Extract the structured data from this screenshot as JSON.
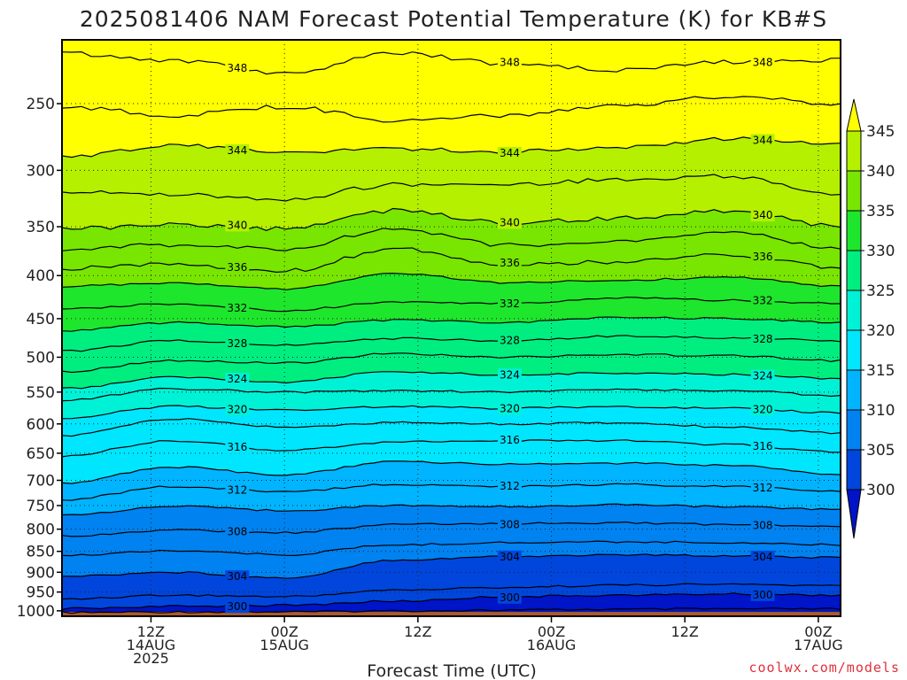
{
  "chart_data": {
    "type": "heatmap",
    "title": "2025081406 NAM Forecast Potential Temperature (K) for KB#S",
    "xlabel": "Forecast Time (UTC)",
    "ylabel": "",
    "units": "K",
    "y_axis": {
      "scale": "log-pressure",
      "direction": "decreasing-upward",
      "range": [
        1015,
        210
      ],
      "ticks": [
        250,
        300,
        350,
        400,
        450,
        500,
        550,
        600,
        650,
        700,
        750,
        800,
        850,
        900,
        950,
        1000
      ]
    },
    "x_axis": {
      "range_hours": [
        -2,
        68
      ],
      "ticks": [
        {
          "hour": 6,
          "lines": [
            "12Z",
            "14AUG",
            "2025"
          ]
        },
        {
          "hour": 18,
          "lines": [
            "00Z",
            "15AUG"
          ]
        },
        {
          "hour": 30,
          "lines": [
            "12Z"
          ]
        },
        {
          "hour": 42,
          "lines": [
            "00Z",
            "16AUG"
          ]
        },
        {
          "hour": 54,
          "lines": [
            "12Z"
          ]
        },
        {
          "hour": 66,
          "lines": [
            "00Z",
            "17AUG"
          ]
        },
        {
          "hour": 78,
          "lines": [
            "12Z"
          ]
        }
      ]
    },
    "grid": true,
    "colorbar": {
      "labels": [
        "345",
        "340",
        "335",
        "330",
        "325",
        "320",
        "315",
        "310",
        "305",
        "300"
      ],
      "bins": [
        {
          "min": 345,
          "max": 350,
          "color": "#ffff00"
        },
        {
          "min": 340,
          "max": 345,
          "color": "#b4f000"
        },
        {
          "min": 335,
          "max": 340,
          "color": "#78e600"
        },
        {
          "min": 330,
          "max": 335,
          "color": "#1ee62c"
        },
        {
          "min": 325,
          "max": 330,
          "color": "#00ee80"
        },
        {
          "min": 320,
          "max": 325,
          "color": "#00f2d6"
        },
        {
          "min": 315,
          "max": 320,
          "color": "#00e6ff"
        },
        {
          "min": 310,
          "max": 315,
          "color": "#00b4ff"
        },
        {
          "min": 305,
          "max": 310,
          "color": "#0082f0"
        },
        {
          "min": 300,
          "max": 305,
          "color": "#0046dc"
        },
        {
          "min": 290,
          "max": 300,
          "color": "#0014c8"
        }
      ]
    },
    "ground_color": "#a85a32",
    "contour_interval": 2,
    "contours": [
      {
        "level": 298,
        "label": "",
        "p": [
          1005,
          1003,
          1003,
          1000,
          998,
          996,
          995,
          995
        ]
      },
      {
        "level": 300,
        "label": "300",
        "p": [
          994,
          988,
          985,
          974,
          962,
          958,
          955,
          958
        ]
      },
      {
        "level": 302,
        "label": "",
        "p": [
          968,
          958,
          962,
          945,
          938,
          932,
          930,
          934
        ]
      },
      {
        "level": 304,
        "label": "304",
        "p": [
          910,
          900,
          914,
          870,
          862,
          858,
          860,
          865
        ]
      },
      {
        "level": 306,
        "label": "",
        "p": [
          860,
          848,
          858,
          835,
          830,
          828,
          830,
          835
        ]
      },
      {
        "level": 308,
        "label": "308",
        "p": [
          815,
          802,
          808,
          790,
          788,
          786,
          790,
          795
        ]
      },
      {
        "level": 310,
        "label": "",
        "p": [
          770,
          752,
          760,
          750,
          752,
          748,
          752,
          758
        ]
      },
      {
        "level": 312,
        "label": "312",
        "p": [
          738,
          712,
          722,
          708,
          712,
          708,
          712,
          722
        ]
      },
      {
        "level": 314,
        "label": "",
        "p": [
          705,
          675,
          690,
          665,
          670,
          668,
          672,
          690
        ]
      },
      {
        "level": 316,
        "label": "316",
        "p": [
          655,
          628,
          645,
          630,
          628,
          628,
          635,
          648
        ]
      },
      {
        "level": 318,
        "label": "",
        "p": [
          620,
          592,
          605,
          598,
          600,
          598,
          605,
          615
        ]
      },
      {
        "level": 320,
        "label": "320",
        "p": [
          590,
          572,
          578,
          572,
          575,
          572,
          575,
          582
        ]
      },
      {
        "level": 322,
        "label": "",
        "p": [
          562,
          545,
          550,
          548,
          550,
          546,
          548,
          555
        ]
      },
      {
        "level": 324,
        "label": "324",
        "p": [
          545,
          528,
          535,
          520,
          525,
          522,
          524,
          530
        ]
      },
      {
        "level": 326,
        "label": "",
        "p": [
          520,
          505,
          508,
          495,
          500,
          496,
          498,
          505
        ]
      },
      {
        "level": 328,
        "label": "328",
        "p": [
          492,
          478,
          484,
          475,
          478,
          472,
          474,
          478
        ]
      },
      {
        "level": 330,
        "label": "",
        "p": [
          465,
          455,
          460,
          452,
          455,
          448,
          450,
          455
        ]
      },
      {
        "level": 332,
        "label": "332",
        "p": [
          438,
          432,
          440,
          430,
          432,
          425,
          428,
          432
        ]
      },
      {
        "level": 334,
        "label": "",
        "p": [
          412,
          408,
          415,
          398,
          408,
          405,
          402,
          412
        ]
      },
      {
        "level": 336,
        "label": "336",
        "p": [
          392,
          388,
          395,
          372,
          388,
          385,
          378,
          392
        ]
      },
      {
        "level": 338,
        "label": "",
        "p": [
          372,
          368,
          372,
          352,
          368,
          365,
          355,
          372
        ]
      },
      {
        "level": 340,
        "label": "340",
        "p": [
          352,
          348,
          352,
          335,
          346,
          342,
          335,
          350
        ]
      },
      {
        "level": 342,
        "label": "",
        "p": [
          318,
          320,
          325,
          312,
          312,
          308,
          305,
          320
        ]
      },
      {
        "level": 344,
        "label": "344",
        "p": [
          290,
          280,
          285,
          283,
          285,
          282,
          275,
          280
        ]
      },
      {
        "level": 346,
        "label": "",
        "p": [
          252,
          258,
          252,
          262,
          258,
          252,
          245,
          250
        ]
      },
      {
        "level": 348,
        "label": "348",
        "p": [
          218,
          222,
          230,
          218,
          224,
          228,
          223,
          222
        ]
      }
    ],
    "contour_hours": [
      -2,
      8,
      18,
      28,
      38,
      48,
      58,
      68
    ]
  },
  "credit": "coolwx.com/models"
}
